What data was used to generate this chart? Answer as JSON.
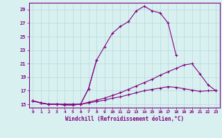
{
  "title": "",
  "xlabel": "Windchill (Refroidissement éolien,°C)",
  "hours": [
    0,
    1,
    2,
    3,
    4,
    5,
    6,
    7,
    8,
    9,
    10,
    11,
    12,
    13,
    14,
    15,
    16,
    17,
    18,
    19,
    20,
    21,
    22,
    23
  ],
  "line1": [
    15.5,
    15.2,
    15.0,
    15.0,
    14.9,
    14.9,
    15.0,
    17.3,
    21.5,
    null,
    null,
    null,
    null,
    null,
    null,
    null,
    null,
    null,
    null,
    null,
    null,
    null,
    null,
    null
  ],
  "line2": [
    15.5,
    15.2,
    15.0,
    15.0,
    14.9,
    14.9,
    15.0,
    17.3,
    21.5,
    23.5,
    25.5,
    26.5,
    27.2,
    28.8,
    29.5,
    28.8,
    28.5,
    27.0,
    22.3,
    null,
    null,
    null,
    null,
    null
  ],
  "line3": [
    15.5,
    15.2,
    15.0,
    15.0,
    15.0,
    15.0,
    15.0,
    15.3,
    15.6,
    15.9,
    16.3,
    16.7,
    17.2,
    17.7,
    18.2,
    18.7,
    19.3,
    19.8,
    20.3,
    20.8,
    21.0,
    19.5,
    17.9,
    17.0
  ],
  "line4": [
    15.5,
    15.2,
    15.0,
    15.0,
    15.0,
    15.0,
    15.0,
    15.2,
    15.4,
    15.6,
    15.9,
    16.1,
    16.4,
    16.7,
    17.0,
    17.2,
    17.4,
    17.6,
    17.5,
    17.3,
    17.1,
    16.9,
    17.0,
    17.0
  ],
  "color": "#800080",
  "bg_color": "#d8f0f0",
  "grid_color": "#b8d8d8",
  "ylim": [
    14.5,
    30.0
  ],
  "yticks": [
    15,
    17,
    19,
    21,
    23,
    25,
    27,
    29
  ],
  "xlim": [
    -0.5,
    23.5
  ],
  "marker": "+"
}
